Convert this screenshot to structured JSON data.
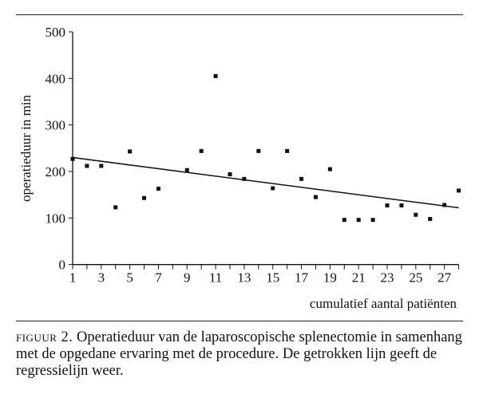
{
  "chart_data": {
    "type": "scatter",
    "xlabel": "cumulatief aantal patiënten",
    "ylabel": "operatieduur in min",
    "xlim": [
      1,
      28
    ],
    "ylim": [
      0,
      500
    ],
    "x_ticks": [
      1,
      3,
      5,
      7,
      9,
      11,
      13,
      15,
      17,
      19,
      21,
      23,
      25,
      27
    ],
    "y_ticks": [
      0,
      100,
      200,
      300,
      400,
      500
    ],
    "grid": false,
    "points": [
      {
        "x": 1,
        "y": 227
      },
      {
        "x": 2,
        "y": 212
      },
      {
        "x": 3,
        "y": 212
      },
      {
        "x": 4,
        "y": 123
      },
      {
        "x": 5,
        "y": 243
      },
      {
        "x": 6,
        "y": 143
      },
      {
        "x": 7,
        "y": 163
      },
      {
        "x": 9,
        "y": 203
      },
      {
        "x": 10,
        "y": 244
      },
      {
        "x": 11,
        "y": 405
      },
      {
        "x": 12,
        "y": 194
      },
      {
        "x": 13,
        "y": 184
      },
      {
        "x": 14,
        "y": 244
      },
      {
        "x": 15,
        "y": 164
      },
      {
        "x": 16,
        "y": 244
      },
      {
        "x": 17,
        "y": 184
      },
      {
        "x": 18,
        "y": 145
      },
      {
        "x": 19,
        "y": 205
      },
      {
        "x": 20,
        "y": 96
      },
      {
        "x": 21,
        "y": 96
      },
      {
        "x": 22,
        "y": 96
      },
      {
        "x": 23,
        "y": 127
      },
      {
        "x": 24,
        "y": 127
      },
      {
        "x": 25,
        "y": 107
      },
      {
        "x": 26,
        "y": 98
      },
      {
        "x": 27,
        "y": 128
      },
      {
        "x": 28,
        "y": 159
      }
    ],
    "regression_line": {
      "x": [
        1,
        28
      ],
      "y": [
        230,
        122
      ]
    }
  },
  "caption": {
    "label": "figuur 2.",
    "text": " Operatieduur van de laparoscopische splenectomie in samenhang met de opgedane ervaring met de procedure. De getrokken lijn geeft de regressielijn weer."
  }
}
